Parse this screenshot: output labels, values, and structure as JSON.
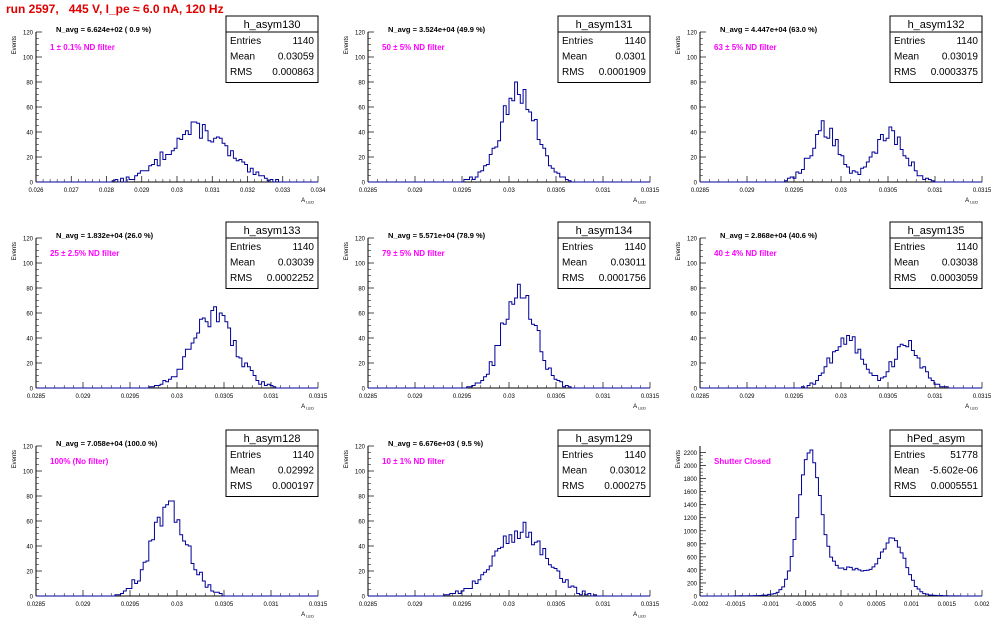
{
  "page": {
    "title": "run 2597,   445 V, I_pe ≈ 6.0 nA, 120 Hz"
  },
  "style": {
    "hist_color": "#000099",
    "axis_color": "#000000",
    "nd_label_color": "#ff00ff",
    "title_color": "#e00000"
  },
  "stats_labels": {
    "entries": "Entries",
    "mean": "Mean",
    "rms": "RMS"
  },
  "chart_data": [
    {
      "type": "bar",
      "name": "h_asym130",
      "navg": "N_avg = 6.624e+02 ( 0.9 %)",
      "filter": "1 ± 0.1% ND filter",
      "entries": "1140",
      "mean": "0.03059",
      "rms": "0.000863",
      "ylabel": "Events",
      "xlabel": "A_LED",
      "xlim": [
        0.026,
        0.034
      ],
      "ylim": [
        0,
        120
      ],
      "xticks": [
        0.026,
        0.027,
        0.028,
        0.029,
        0.03,
        0.031,
        0.032,
        0.033,
        0.034
      ],
      "xticklabels": [
        "0.026",
        "0.027",
        "0.028",
        "0.029",
        "0.03",
        "0.031",
        "0.032",
        "0.033",
        "0.034"
      ],
      "yticks": [
        0,
        20,
        40,
        60,
        80,
        100,
        120
      ],
      "peaks": [
        {
          "mu": 0.03059,
          "sig": 0.00083,
          "amp": 42
        }
      ]
    },
    {
      "type": "bar",
      "name": "h_asym131",
      "navg": "N_avg = 3.524e+04 (49.9 %)",
      "filter": "50 ± 5% ND filter",
      "entries": "1140",
      "mean": "0.0301",
      "rms": "0.0001909",
      "ylabel": "Events",
      "xlabel": "A_LED",
      "xlim": [
        0.0285,
        0.0315
      ],
      "ylim": [
        0,
        120
      ],
      "xticks": [
        0.0285,
        0.029,
        0.0295,
        0.03,
        0.0305,
        0.031,
        0.0315
      ],
      "xticklabels": [
        "0.0285",
        "0.029",
        "0.0295",
        "0.03",
        "0.0305",
        "0.031",
        "0.0315"
      ],
      "yticks": [
        0,
        20,
        40,
        60,
        80,
        100,
        120
      ],
      "peaks": [
        {
          "mu": 0.0301,
          "sig": 0.00019,
          "amp": 72
        }
      ]
    },
    {
      "type": "bar",
      "name": "h_asym132",
      "navg": "N_avg = 4.447e+04 (63.0 %)",
      "filter": "63 ± 5% ND filter",
      "entries": "1140",
      "mean": "0.03019",
      "rms": "0.0003375",
      "ylabel": "Events",
      "xlabel": "A_LED",
      "xlim": [
        0.0285,
        0.0315
      ],
      "ylim": [
        0,
        120
      ],
      "xticks": [
        0.0285,
        0.029,
        0.0295,
        0.03,
        0.0305,
        0.031,
        0.0315
      ],
      "xticklabels": [
        "0.0285",
        "0.029",
        "0.0295",
        "0.03",
        "0.0305",
        "0.031",
        "0.0315"
      ],
      "yticks": [
        0,
        20,
        40,
        60,
        80,
        100,
        120
      ],
      "peaks": [
        {
          "mu": 0.02983,
          "sig": 0.00015,
          "amp": 43
        },
        {
          "mu": 0.03052,
          "sig": 0.00016,
          "amp": 40
        }
      ]
    },
    {
      "type": "bar",
      "name": "h_asym133",
      "navg": "N_avg = 1.832e+04 (26.0 %)",
      "filter": "25 ± 2.5% ND filter",
      "entries": "1140",
      "mean": "0.03039",
      "rms": "0.0002252",
      "ylabel": "Events",
      "xlabel": "A_LED",
      "xlim": [
        0.0285,
        0.0315
      ],
      "ylim": [
        0,
        120
      ],
      "xticks": [
        0.0285,
        0.029,
        0.0295,
        0.03,
        0.0305,
        0.031,
        0.0315
      ],
      "xticklabels": [
        "0.0285",
        "0.029",
        "0.0295",
        "0.03",
        "0.0305",
        "0.031",
        "0.0315"
      ],
      "yticks": [
        0,
        20,
        40,
        60,
        80,
        100,
        120
      ],
      "peaks": [
        {
          "mu": 0.03039,
          "sig": 0.000225,
          "amp": 58
        }
      ]
    },
    {
      "type": "bar",
      "name": "h_asym134",
      "navg": "N_avg = 5.571e+04 (78.9 %)",
      "filter": "79 ± 5% ND filter",
      "entries": "1140",
      "mean": "0.03011",
      "rms": "0.0001756",
      "ylabel": "Events",
      "xlabel": "A_LED",
      "xlim": [
        0.0285,
        0.0315
      ],
      "ylim": [
        0,
        120
      ],
      "xticks": [
        0.0285,
        0.029,
        0.0295,
        0.03,
        0.0305,
        0.031,
        0.0315
      ],
      "xticklabels": [
        "0.0285",
        "0.029",
        "0.0295",
        "0.03",
        "0.0305",
        "0.031",
        "0.0315"
      ],
      "yticks": [
        0,
        20,
        40,
        60,
        80,
        100,
        120
      ],
      "peaks": [
        {
          "mu": 0.03011,
          "sig": 0.000175,
          "amp": 78
        }
      ]
    },
    {
      "type": "bar",
      "name": "h_asym135",
      "navg": "N_avg = 2.868e+04 (40.6 %)",
      "filter": "40 ± 4% ND filter",
      "entries": "1140",
      "mean": "0.03038",
      "rms": "0.0003059",
      "ylabel": "Events",
      "xlabel": "A_LED",
      "xlim": [
        0.0285,
        0.0315
      ],
      "ylim": [
        0,
        120
      ],
      "xticks": [
        0.0285,
        0.029,
        0.0295,
        0.03,
        0.0305,
        0.031,
        0.0315
      ],
      "xticklabels": [
        "0.0285",
        "0.029",
        "0.0295",
        "0.03",
        "0.0305",
        "0.031",
        "0.0315"
      ],
      "yticks": [
        0,
        20,
        40,
        60,
        80,
        100,
        120
      ],
      "peaks": [
        {
          "mu": 0.03005,
          "sig": 0.00016,
          "amp": 40
        },
        {
          "mu": 0.0307,
          "sig": 0.00015,
          "amp": 34
        }
      ]
    },
    {
      "type": "bar",
      "name": "h_asym128",
      "navg": "N_avg = 7.058e+04 (100.0 %)",
      "filter": "100% (No filter)",
      "entries": "1140",
      "mean": "0.02992",
      "rms": "0.000197",
      "ylabel": "Events",
      "xlabel": "A_LED",
      "xlim": [
        0.0285,
        0.0315
      ],
      "ylim": [
        0,
        120
      ],
      "xticks": [
        0.0285,
        0.029,
        0.0295,
        0.03,
        0.0305,
        0.031,
        0.0315
      ],
      "xticklabels": [
        "0.0285",
        "0.029",
        "0.0295",
        "0.03",
        "0.0305",
        "0.031",
        "0.0315"
      ],
      "yticks": [
        0,
        20,
        40,
        60,
        80,
        100,
        120
      ],
      "peaks": [
        {
          "mu": 0.02992,
          "sig": 0.000195,
          "amp": 68
        }
      ]
    },
    {
      "type": "bar",
      "name": "h_asym129",
      "navg": "N_avg = 6.676e+03 ( 9.5 %)",
      "filter": "10 ± 1% ND filter",
      "entries": "1140",
      "mean": "0.03012",
      "rms": "0.000275",
      "ylabel": "Events",
      "xlabel": "A_LED",
      "xlim": [
        0.0285,
        0.0315
      ],
      "ylim": [
        0,
        120
      ],
      "xticks": [
        0.0285,
        0.029,
        0.0295,
        0.03,
        0.0305,
        0.031,
        0.0315
      ],
      "xticklabels": [
        "0.0285",
        "0.029",
        "0.0295",
        "0.03",
        "0.0305",
        "0.031",
        "0.0315"
      ],
      "yticks": [
        0,
        20,
        40,
        60,
        80,
        100,
        120
      ],
      "peaks": [
        {
          "mu": 0.03012,
          "sig": 0.00027,
          "amp": 52
        }
      ]
    },
    {
      "type": "bar",
      "name": "hPed_asym",
      "navg": "",
      "filter": "Shutter Closed",
      "entries": "51778",
      "mean": "-5.602e-06",
      "rms": "0.0005551",
      "ylabel": "Events",
      "xlabel": "",
      "xlim": [
        -0.002,
        0.002
      ],
      "ylim": [
        0,
        2300
      ],
      "xticks": [
        -0.002,
        -0.0015,
        -0.001,
        -0.0005,
        0,
        0.0005,
        0.001,
        0.0015,
        0.002
      ],
      "xticklabels": [
        "-0.002",
        "-0.0015",
        "-0.001",
        "-0.0005",
        "0",
        "0.0005",
        "0.001",
        "0.0015",
        "0.002"
      ],
      "yticks": [
        0,
        200,
        400,
        600,
        800,
        1000,
        1200,
        1400,
        1600,
        1800,
        2000,
        2200
      ],
      "peaks": [
        {
          "mu": -0.00045,
          "sig": 0.00015,
          "amp": 2050
        },
        {
          "mu": 0.0001,
          "sig": 0.00045,
          "amp": 420
        },
        {
          "mu": 0.00075,
          "sig": 0.00016,
          "amp": 730
        }
      ]
    }
  ]
}
